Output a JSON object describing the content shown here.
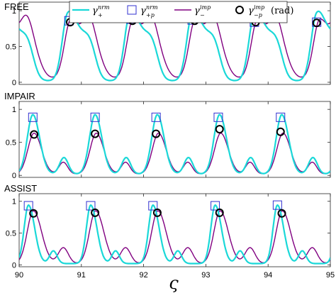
{
  "chart_data": {
    "type": "line",
    "x_axis": {
      "label": "ς",
      "ticks": [
        "90",
        "91",
        "92",
        "93",
        "94",
        "95"
      ],
      "lim": [
        90,
        95
      ]
    },
    "y_axis": {
      "ticks": [
        "0",
        "0.5",
        "1"
      ],
      "lim": [
        -0.03,
        1.12
      ]
    },
    "legend": {
      "placement": "top",
      "entries": [
        {
          "id": "s1",
          "base": "γ",
          "sup": "nrm",
          "sub": "+",
          "suffix": ""
        },
        {
          "id": "s2",
          "base": "γ",
          "sup": "nrm",
          "sub": "+p",
          "suffix": ""
        },
        {
          "id": "s3",
          "base": "γ",
          "sup": "imp",
          "sub": "−",
          "suffix": ""
        },
        {
          "id": "s4",
          "base": "γ",
          "sup": "imp",
          "sub": "−p",
          "suffix": "(rad)"
        }
      ]
    },
    "colors": {
      "nrm_line": "#1ad8d8",
      "imp_line": "#800080",
      "nrm_marker": "#3030d0",
      "imp_marker": "#000000"
    },
    "panels": [
      {
        "title": "FREE",
        "nrm": {
          "period": 1,
          "peak_x": 90.78,
          "peak_y": 0.9,
          "base": 0.02,
          "bumps": [
            [
              -0.62,
              0.26,
              0.09
            ],
            [
              0.25,
              0.5,
              0.13
            ]
          ],
          "rise_w": 0.09,
          "fall_w": 0.13
        },
        "imp": {
          "period": 1,
          "peak_x": 90.83,
          "peak_y": 0.87,
          "base": 0.05,
          "bumps": [
            [
              -0.6,
              0.37,
              0.12
            ],
            [
              0.28,
              0.6,
              0.1
            ]
          ],
          "rise_w": 0.1,
          "fall_w": 0.15
        },
        "nrm_peaks": {
          "x": [
            90.8,
            91.8,
            92.78,
            93.78,
            94.78
          ],
          "y": [
            0.86,
            0.88,
            0.87,
            0.84,
            0.84
          ]
        },
        "imp_peaks": {
          "x": [
            90.82,
            91.82,
            92.82,
            93.8,
            94.78
          ],
          "y": [
            0.84,
            0.86,
            0.86,
            0.84,
            0.83
          ]
        }
      },
      {
        "title": "IMPAIR",
        "nrm": {
          "period": 1,
          "peak_x": 90.22,
          "peak_y": 0.92,
          "base": 0.02,
          "bumps": [
            [
              0.5,
              0.27,
              0.07
            ]
          ],
          "rise_w": 0.09,
          "fall_w": 0.11
        },
        "imp": {
          "period": 1,
          "peak_x": 90.24,
          "peak_y": 0.64,
          "base": 0.02,
          "bumps": [
            [
              0.47,
              0.2,
              0.07
            ]
          ],
          "rise_w": 0.1,
          "fall_w": 0.12
        },
        "nrm_peaks": {
          "x": [
            90.22,
            91.22,
            92.2,
            93.2,
            94.2
          ],
          "y": [
            0.88,
            0.88,
            0.88,
            0.88,
            0.88
          ]
        },
        "imp_peaks": {
          "x": [
            90.24,
            91.22,
            92.2,
            93.22,
            94.2
          ],
          "y": [
            0.62,
            0.63,
            0.63,
            0.7,
            0.66
          ]
        }
      },
      {
        "title": "ASSIST",
        "nrm": {
          "period": 1,
          "peak_x": 90.15,
          "peak_y": 0.94,
          "base": 0.02,
          "bumps": [
            [
              0.4,
              0.22,
              0.06
            ]
          ],
          "rise_w": 0.07,
          "fall_w": 0.1
        },
        "imp": {
          "period": 1,
          "peak_x": 90.23,
          "peak_y": 0.85,
          "base": 0.02,
          "bumps": [
            [
              0.48,
              0.27,
              0.08
            ]
          ],
          "rise_w": 0.1,
          "fall_w": 0.13
        },
        "nrm_peaks": {
          "x": [
            90.15,
            91.15,
            92.15,
            93.15,
            94.15
          ],
          "y": [
            0.93,
            0.93,
            0.93,
            0.93,
            0.94
          ]
        },
        "imp_peaks": {
          "x": [
            90.23,
            91.22,
            92.22,
            93.22,
            94.22
          ],
          "y": [
            0.81,
            0.82,
            0.82,
            0.82,
            0.81
          ]
        }
      }
    ]
  }
}
